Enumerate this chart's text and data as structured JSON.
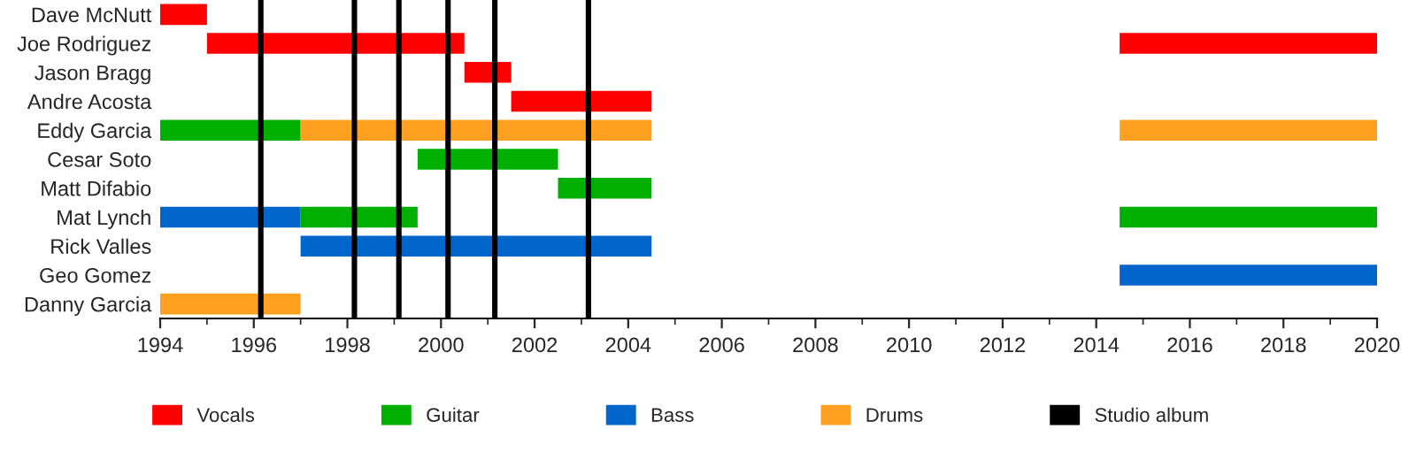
{
  "chart_data": {
    "type": "bar",
    "orientation": "horizontal",
    "categories": [
      "Dave McNutt",
      "Joe Rodriguez",
      "Jason Bragg",
      "Andre Acosta",
      "Eddy Garcia",
      "Cesar Soto",
      "Matt Difabio",
      "Mat Lynch",
      "Rick Valles",
      "Geo Gomez",
      "Danny Garcia"
    ],
    "series": [
      {
        "name": "Vocals",
        "color": "#ff0000",
        "base": [
          1994,
          1995,
          2000.5,
          2001.5,
          null,
          null,
          null,
          null,
          null,
          null,
          null
        ],
        "values": [
          1,
          5.5,
          1,
          3,
          null,
          null,
          null,
          null,
          null,
          null,
          null
        ]
      },
      {
        "name": "Guitar",
        "color": "#00b000",
        "base": [
          null,
          null,
          null,
          null,
          1994,
          1999.5,
          2002.5,
          1997,
          null,
          null,
          null
        ],
        "values": [
          null,
          null,
          null,
          null,
          3,
          3,
          2,
          2.5,
          null,
          null,
          null
        ]
      },
      {
        "name": "Bass",
        "color": "#0066cc",
        "base": [
          null,
          null,
          null,
          null,
          null,
          null,
          null,
          1994,
          1997,
          2014.5,
          null
        ],
        "values": [
          null,
          null,
          null,
          null,
          null,
          null,
          null,
          3,
          7.5,
          5.5,
          null
        ]
      },
      {
        "name": "Drums",
        "color": "#ffa020",
        "base": [
          null,
          null,
          null,
          null,
          1997,
          null,
          null,
          null,
          null,
          null,
          1994
        ],
        "values": [
          null,
          null,
          null,
          null,
          7.5,
          null,
          null,
          null,
          null,
          null,
          3
        ]
      },
      {
        "color": "#ff0000",
        "base": [
          null,
          2014.5,
          null,
          null,
          null,
          null,
          null,
          null,
          null,
          null,
          null
        ],
        "values": [
          null,
          5.5,
          null,
          null,
          null,
          null,
          null,
          null,
          null,
          null,
          null
        ]
      },
      {
        "color": "#ffa020",
        "base": [
          null,
          null,
          null,
          null,
          2014.5,
          null,
          null,
          null,
          null,
          null,
          null
        ],
        "values": [
          null,
          null,
          null,
          null,
          5.5,
          null,
          null,
          null,
          null,
          null,
          null
        ]
      },
      {
        "color": "#00b000",
        "base": [
          null,
          null,
          null,
          null,
          null,
          null,
          null,
          2014.5,
          null,
          null,
          null
        ],
        "values": [
          null,
          null,
          null,
          null,
          null,
          null,
          null,
          5.5,
          null,
          null,
          null
        ]
      }
    ],
    "ref_lines": [
      {
        "axis": "x",
        "value": 1996.15,
        "label": "Studio album",
        "color": "#000000"
      },
      {
        "axis": "x",
        "value": 1998.15,
        "color": "#000000"
      },
      {
        "axis": "x",
        "value": 1999.1,
        "color": "#000000"
      },
      {
        "axis": "x",
        "value": 2000.15,
        "color": "#000000"
      },
      {
        "axis": "x",
        "value": 2001.15,
        "color": "#000000"
      },
      {
        "axis": "x",
        "value": 2003.15,
        "color": "#000000"
      }
    ],
    "xlim": [
      1994,
      2020
    ],
    "xticks": [
      1994,
      1996,
      1998,
      2000,
      2002,
      2004,
      2006,
      2008,
      2010,
      2012,
      2014,
      2016,
      2018,
      2020
    ],
    "grid": false,
    "legend": "bottom"
  }
}
